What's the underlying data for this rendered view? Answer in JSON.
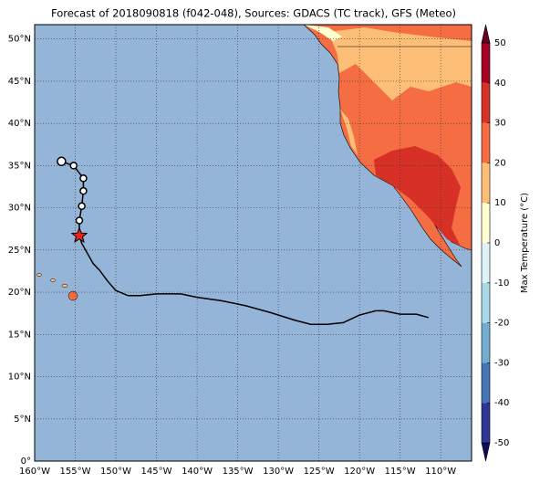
{
  "chart_data": {
    "type": "map",
    "title": "Forecast of 2018090818 (f042-048), Sources: GDACS (TC track), GFS (Meteo)",
    "xlim": [
      -160,
      -106.2
    ],
    "ylim": [
      0,
      51.7
    ],
    "xticks": [
      {
        "value": -160,
        "label": "160°W"
      },
      {
        "value": -155,
        "label": "155°W"
      },
      {
        "value": -150,
        "label": "150°W"
      },
      {
        "value": -145,
        "label": "145°W"
      },
      {
        "value": -140,
        "label": "140°W"
      },
      {
        "value": -135,
        "label": "135°W"
      },
      {
        "value": -130,
        "label": "130°W"
      },
      {
        "value": -125,
        "label": "125°W"
      },
      {
        "value": -120,
        "label": "120°W"
      },
      {
        "value": -115,
        "label": "115°W"
      },
      {
        "value": -110,
        "label": "110°W"
      }
    ],
    "yticks": [
      {
        "value": 0,
        "label": "0°"
      },
      {
        "value": 5,
        "label": "5°N"
      },
      {
        "value": 10,
        "label": "10°N"
      },
      {
        "value": 15,
        "label": "15°N"
      },
      {
        "value": 20,
        "label": "20°N"
      },
      {
        "value": 25,
        "label": "25°N"
      },
      {
        "value": 30,
        "label": "30°N"
      },
      {
        "value": 35,
        "label": "35°N"
      },
      {
        "value": 40,
        "label": "40°N"
      },
      {
        "value": 45,
        "label": "45°N"
      },
      {
        "value": 50,
        "label": "50°N"
      }
    ],
    "grid": true,
    "ocean_color": "#94b4d8",
    "track": {
      "color": "#000000",
      "lon": [
        -111.5,
        -113,
        -115,
        -116,
        -117,
        -118,
        -120,
        -122,
        -124,
        -126,
        -128,
        -131,
        -134,
        -137,
        -140,
        -142,
        -145,
        -147,
        -148.5,
        -150,
        -151,
        -152,
        -152.8,
        -153.5,
        -154.2,
        -154.5
      ],
      "lat": [
        17.0,
        17.4,
        17.4,
        17.6,
        17.8,
        17.8,
        17.3,
        16.4,
        16.2,
        16.2,
        16.7,
        17.6,
        18.4,
        19.0,
        19.4,
        19.8,
        19.8,
        19.6,
        19.6,
        20.2,
        21.3,
        22.6,
        23.4,
        24.6,
        25.8,
        26.7
      ]
    },
    "storm_color": "#e8251d",
    "forecast": {
      "lon": [
        -154.5,
        -154.2,
        -154,
        -154,
        -155.2,
        -156.7
      ],
      "lat": [
        28.5,
        30.2,
        32,
        33.5,
        35.0,
        35.5
      ]
    },
    "colorbar": {
      "label": "Max Temperature (°C)",
      "lim": [
        -50,
        50
      ],
      "ticks": [
        -50,
        -40,
        -30,
        -20,
        -10,
        0,
        10,
        20,
        30,
        40,
        50
      ],
      "colors": [
        "#313695",
        "#4575b4",
        "#74add1",
        "#abd9e9",
        "#e0f3f8",
        "#ffffd0",
        "#fdbf78",
        "#f46d43",
        "#d73027",
        "#a50026"
      ],
      "under_color": "#0c0c5a",
      "over_color": "#67001f"
    }
  }
}
